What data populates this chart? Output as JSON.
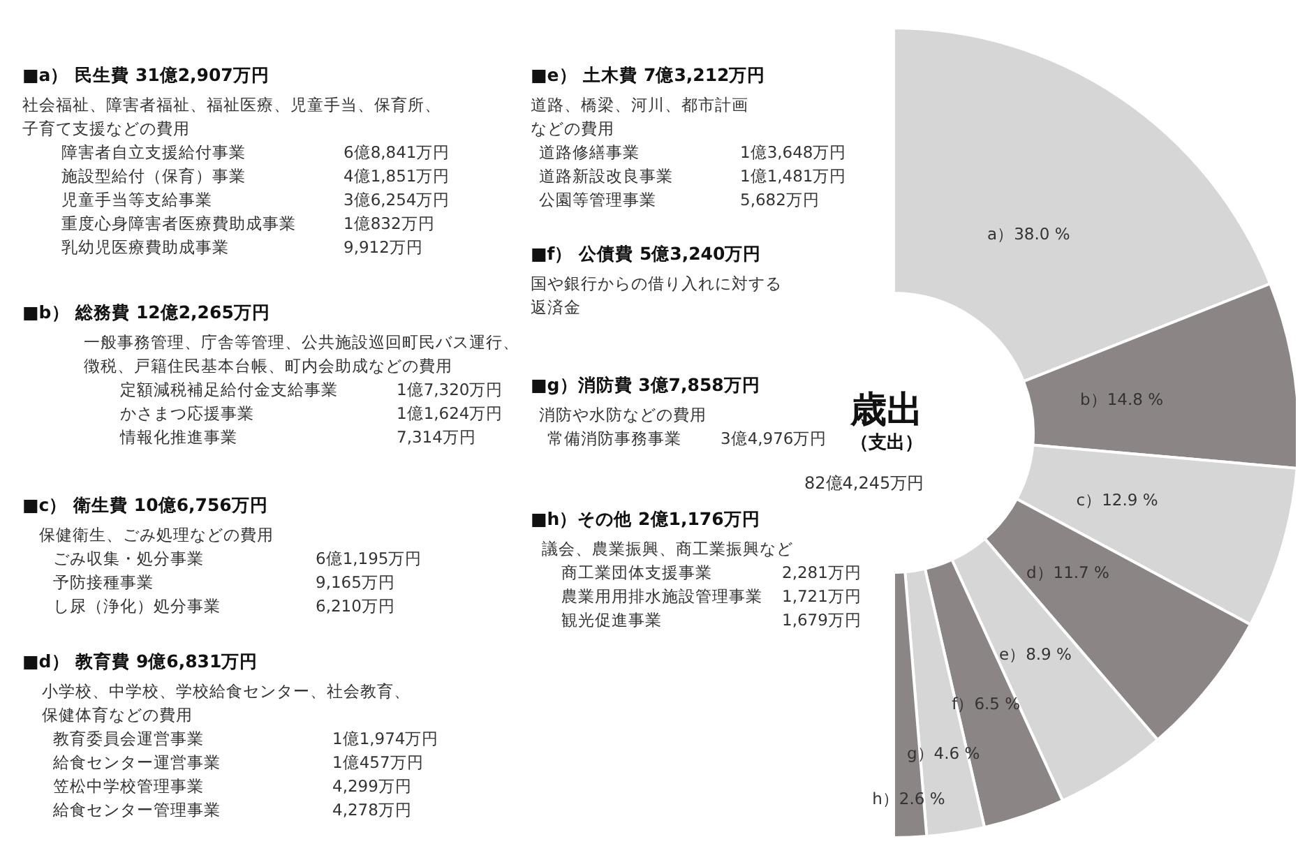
{
  "chart_data": [
    {
      "type": "other",
      "title": "■a） 民生費 31億2,907万円",
      "annotations": [
        "社会福祉、障害者福祉、福祉医療、児童手当、保育所、",
        "子育て支援などの費用",
        "障害者自立支援給付事業\t6億8,841万円",
        "施設型給付（保育）事業\t4億1,851万円",
        "児童手当等支給事業\t3億6,254万円",
        "重度心身障害者医療費助成事業\t1億832万円",
        "乳幼児医療費助成事業\t9,912万円"
      ]
    },
    {
      "type": "other",
      "title": "■b） 総務費 12億2,265万円",
      "annotations": [
        "一般事務管理、庁舎等管理、公共施設巡回町民バス運行、",
        "徴税、戸籍住民基本台帳、町内会助成などの費用",
        "定額減税補足給付金支給事業\t1億7,320万円",
        "かさまつ応援事業\t1億1,624万円",
        "情報化推進事業\t7,314万円"
      ]
    },
    {
      "type": "other",
      "title": "■c） 衛生費 10億6,756万円",
      "annotations": [
        "保健衛生、ごみ処理などの費用",
        "ごみ収集・処分事業\t6億1,195万円",
        "予防接種事業\t9,165万円",
        "し尿（浄化）処分事業\t6,210万円"
      ]
    },
    {
      "type": "other",
      "title": "■d） 教育費 9億6,831万円",
      "annotations": [
        "小学校、中学校、学校給食センター、社会教育、",
        "保健体育などの費用",
        "教育委員会運営事業\t1億1,974万円",
        "給食センター運営事業\t1億457万円",
        "笠松中学校管理事業\t4,299万円",
        "給食センター管理事業\t4,278万円"
      ]
    },
    {
      "type": "other",
      "title": "■e） 土木費 7億3,212万円",
      "annotations": [
        "道路、橋梁、河川、都市計画",
        "などの費用",
        "道路修繕事業\t1億3,648万円",
        "道路新設改良事業\t1億1,481万円",
        "公園等管理事業\t5,682万円"
      ]
    },
    {
      "type": "other",
      "title": "■f） 公債費 5億3,240万円",
      "annotations": [
        "国や銀行からの借り入れに対する",
        "返済金"
      ]
    },
    {
      "type": "other",
      "title": "■g）消防費 3億7,858万円",
      "annotations": [
        "消防や水防などの費用",
        "常備消防事務事業\t3億4,976万円"
      ]
    },
    {
      "type": "other",
      "title": "■h）その他 2億1,176万円",
      "annotations": [
        "議会、農業振興、商工業振興など",
        "商工業団体支援事業\t2,281万円",
        "農業用用排水施設管理事業\t1,721万円",
        "観光促進事業\t1,679万円"
      ]
    },
    {
      "type": "donut",
      "title": "歳出",
      "subtitle": "（支出）",
      "annotations": [
        "82億4,245万円"
      ],
      "categories": [
        "a）",
        "b）",
        "c）",
        "d）",
        "e）",
        "f）",
        "g）",
        "h）"
      ],
      "values": [
        38.0,
        14.8,
        12.9,
        11.7,
        8.9,
        6.5,
        4.6,
        2.6
      ],
      "value_labels": [
        "38.0 %",
        "14.8 %",
        "12.9 %",
        "11.7 %",
        "8.9 %",
        "6.5 %",
        "4.6 %",
        "2.6 %"
      ],
      "colors": [
        "#d6d6d6",
        "#8b8685",
        "#d6d6d6",
        "#8b8685",
        "#d6d6d6",
        "#8b8685",
        "#d6d6d6",
        "#8b8685"
      ]
    }
  ]
}
